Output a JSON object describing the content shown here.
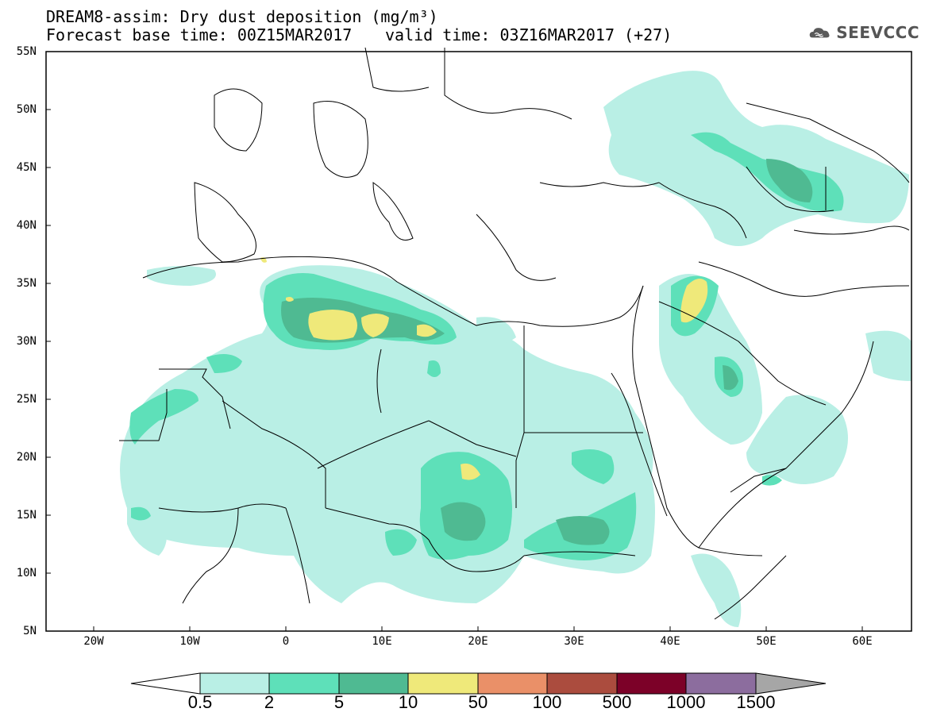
{
  "title_line1": "DREAM8-assim: Dry dust deposition (mg/m³)",
  "title_line2": "Forecast base time: 00Z15MAR2017",
  "title_line2_valid": "valid time: 03Z16MAR2017 (+27)",
  "logo": {
    "text": "SEEVCCC",
    "icon": "cloud-icon",
    "color": "#555555"
  },
  "lat_labels": [
    "55N",
    "50N",
    "45N",
    "40N",
    "35N",
    "30N",
    "25N",
    "20N",
    "15N",
    "10N",
    "5N"
  ],
  "lon_labels": [
    "20W",
    "10W",
    "0",
    "10E",
    "20E",
    "30E",
    "40E",
    "50E",
    "60E"
  ],
  "colorbar": {
    "labels": [
      "0.5",
      "2",
      "5",
      "10",
      "50",
      "100",
      "500",
      "1000",
      "1500"
    ],
    "colors": [
      "#b9efe5",
      "#5ee0b9",
      "#4fba92",
      "#efe97a",
      "#ea9068",
      "#ab4c3e",
      "#7c0128",
      "#8c6d9e"
    ],
    "arrow_low": "#ffffff",
    "arrow_high": "#a6a6a6"
  },
  "map": {
    "lon_range": [
      -25,
      65
    ],
    "lat_range": [
      5,
      55
    ]
  }
}
